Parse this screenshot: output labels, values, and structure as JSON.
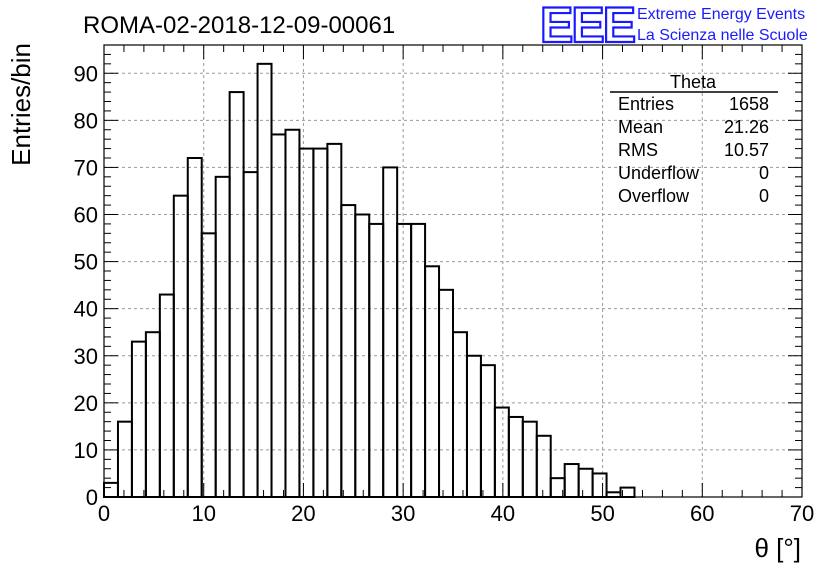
{
  "header": {
    "run_title": "ROMA-02-2018-12-09-00061",
    "logo_text": "EEE",
    "logo_line1": "Extreme Energy Events",
    "logo_line2": "La Scienza nelle Scuole",
    "logo_color": "#1a1aff"
  },
  "stats_box": {
    "name": "Theta",
    "rows": [
      {
        "label": "Entries",
        "value": "1658"
      },
      {
        "label": "Mean",
        "value": "21.26"
      },
      {
        "label": "RMS",
        "value": "10.57"
      },
      {
        "label": "Underflow",
        "value": "0"
      },
      {
        "label": "Overflow",
        "value": "0"
      }
    ]
  },
  "chart_data": {
    "type": "bar",
    "xlabel": "θ [°]",
    "ylabel": "Entries/bin",
    "xlim": [
      0,
      70
    ],
    "ylim": [
      0,
      96
    ],
    "bin_width": 1.4,
    "grid": true,
    "x_ticks": [
      "0",
      "10",
      "20",
      "30",
      "40",
      "50",
      "60",
      "70"
    ],
    "y_ticks": [
      "0",
      "10",
      "20",
      "30",
      "40",
      "50",
      "60",
      "70",
      "80",
      "90"
    ],
    "values": [
      3,
      16,
      33,
      35,
      43,
      64,
      72,
      56,
      68,
      86,
      69,
      92,
      77,
      78,
      74,
      74,
      75,
      62,
      60,
      58,
      70,
      58,
      58,
      49,
      44,
      35,
      30,
      28,
      19,
      17,
      16,
      13,
      4,
      7,
      6,
      5,
      1,
      2,
      0,
      0,
      0,
      0,
      0,
      0,
      0,
      0,
      0,
      0,
      0,
      0
    ]
  }
}
